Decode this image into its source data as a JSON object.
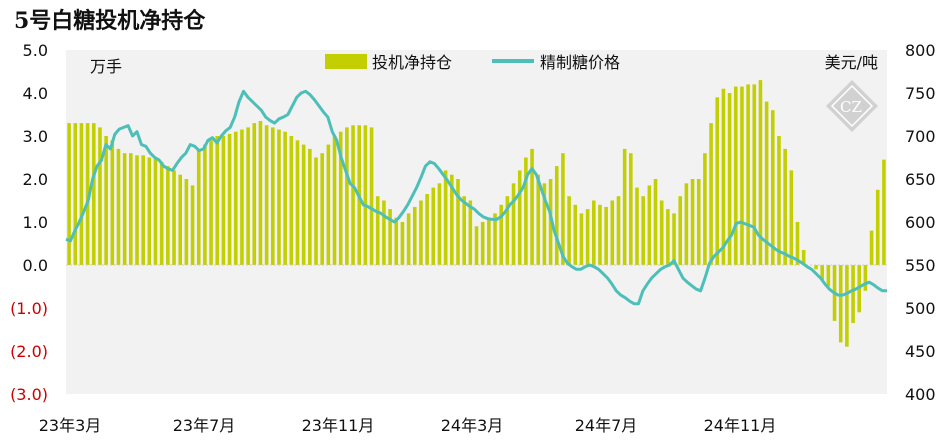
{
  "chart_data": {
    "type": "bar+line",
    "title": "5号白糖投机净持仓",
    "y_left_unit": "万手",
    "y_right_unit": "美元/吨",
    "y_left": {
      "min": -3.0,
      "max": 5.0,
      "ticks": [
        "5.0",
        "4.0",
        "3.0",
        "2.0",
        "1.0",
        "0.0",
        "(1.0)",
        "(2.0)",
        "(3.0)"
      ],
      "tick_values": [
        5,
        4,
        3,
        2,
        1,
        0,
        -1,
        -2,
        -3
      ]
    },
    "y_right": {
      "min": 400,
      "max": 800,
      "ticks": [
        "800",
        "750",
        "700",
        "650",
        "600",
        "550",
        "500",
        "450",
        "400"
      ],
      "tick_values": [
        800,
        750,
        700,
        650,
        600,
        550,
        500,
        450,
        400
      ]
    },
    "x_ticks": [
      "23年3月",
      "23年7月",
      "23年11月",
      "24年3月",
      "24年7月",
      "24年11月"
    ],
    "legend_position": "top",
    "colors": {
      "bar": "#c3cf00",
      "line": "#4bbfb8",
      "plot_bg": "#f2f2f2",
      "negative_tick": "#cc0000"
    },
    "series": [
      {
        "name": "投机净持仓",
        "type": "bar",
        "values": [
          3.3,
          3.3,
          3.3,
          3.3,
          3.3,
          3.2,
          3.0,
          2.9,
          2.7,
          2.6,
          2.6,
          2.55,
          2.55,
          2.5,
          2.5,
          2.4,
          2.3,
          2.2,
          2.1,
          2.0,
          1.85,
          2.7,
          2.8,
          2.9,
          3.0,
          3.0,
          3.05,
          3.1,
          3.15,
          3.2,
          3.3,
          3.35,
          3.25,
          3.2,
          3.15,
          3.1,
          3.0,
          2.9,
          2.8,
          2.7,
          2.5,
          2.6,
          2.8,
          3.0,
          3.1,
          3.2,
          3.25,
          3.25,
          3.25,
          3.2,
          1.6,
          1.5,
          1.3,
          1.1,
          1.0,
          1.2,
          1.35,
          1.5,
          1.65,
          1.8,
          1.9,
          2.2,
          2.1,
          2.0,
          1.6,
          1.5,
          0.9,
          1.0,
          1.1,
          1.2,
          1.4,
          1.6,
          1.9,
          2.2,
          2.5,
          2.7,
          2.1,
          1.9,
          2.0,
          2.3,
          2.6,
          1.6,
          1.4,
          1.2,
          1.3,
          1.5,
          1.4,
          1.35,
          1.5,
          1.6,
          2.7,
          2.6,
          1.8,
          1.6,
          1.85,
          2.0,
          1.5,
          1.3,
          1.2,
          1.6,
          1.9,
          2.0,
          2.0,
          2.6,
          3.3,
          3.9,
          4.1,
          4.0,
          4.15,
          4.15,
          4.2,
          4.2,
          4.3,
          3.8,
          3.6,
          3.0,
          2.7,
          2.2,
          1.0,
          0.35,
          0.0,
          -0.1,
          -0.35,
          -0.5,
          -1.3,
          -1.8,
          -1.9,
          -1.35,
          -1.1,
          -0.6,
          0.8,
          1.75,
          2.45
        ],
        "annotations": []
      },
      {
        "name": "精制糖价格",
        "type": "line",
        "values": [
          580,
          578,
          590,
          600,
          612,
          625,
          650,
          665,
          672,
          690,
          685,
          702,
          708,
          710,
          712,
          700,
          705,
          690,
          688,
          680,
          675,
          672,
          665,
          662,
          660,
          668,
          675,
          680,
          690,
          688,
          683,
          685,
          695,
          698,
          692,
          700,
          706,
          710,
          722,
          740,
          752,
          745,
          740,
          735,
          730,
          722,
          718,
          715,
          720,
          722,
          725,
          735,
          745,
          750,
          752,
          748,
          742,
          735,
          728,
          722,
          705,
          695,
          675,
          660,
          645,
          640,
          630,
          620,
          618,
          615,
          612,
          610,
          606,
          603,
          600,
          605,
          612,
          620,
          630,
          640,
          652,
          665,
          670,
          668,
          662,
          655,
          648,
          640,
          632,
          626,
          622,
          618,
          615,
          610,
          606,
          604,
          603,
          603,
          606,
          612,
          620,
          625,
          632,
          640,
          655,
          662,
          655,
          640,
          625,
          612,
          590,
          575,
          560,
          552,
          548,
          545,
          545,
          548,
          550,
          548,
          545,
          540,
          535,
          528,
          520,
          515,
          512,
          508,
          505,
          505,
          520,
          528,
          535,
          540,
          545,
          548,
          550,
          555,
          545,
          535,
          530,
          526,
          522,
          520,
          535,
          552,
          560,
          565,
          570,
          578,
          585,
          598,
          600,
          598,
          596,
          594,
          585,
          580,
          576,
          572,
          568,
          565,
          563,
          560,
          558,
          555,
          552,
          548,
          545,
          540,
          535,
          528,
          522,
          518,
          515,
          515,
          517,
          520,
          522,
          525,
          528,
          530,
          527,
          523,
          520,
          520
        ],
        "annotations": []
      }
    ]
  },
  "watermark": {
    "text": "CZ"
  }
}
